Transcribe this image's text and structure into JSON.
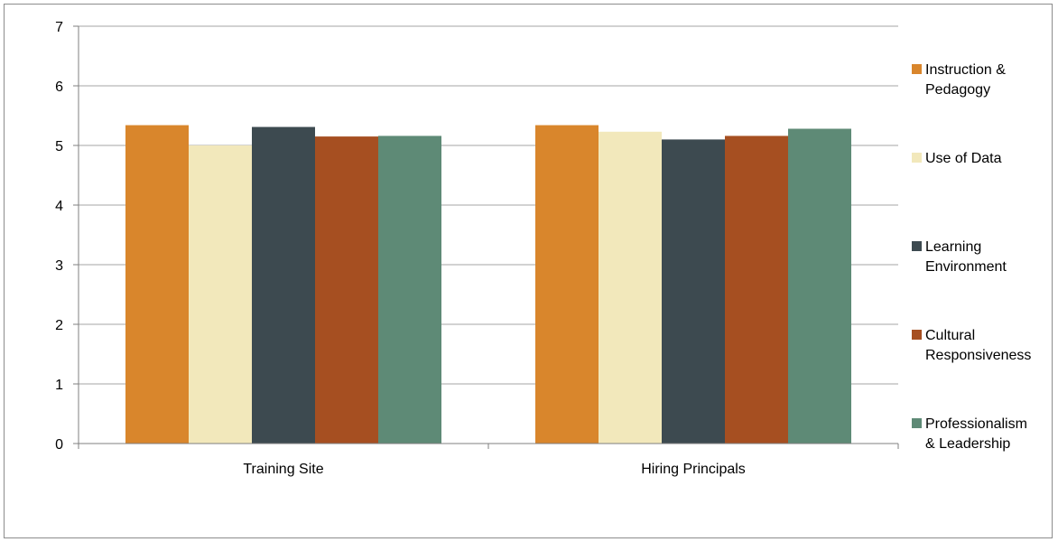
{
  "chart_data": {
    "type": "bar",
    "categories": [
      "Training Site",
      "Hiring Principals"
    ],
    "series": [
      {
        "name": "Instruction & Pedagogy",
        "label_lines": [
          "Instruction &",
          "Pedagogy"
        ],
        "color": "#d9862c",
        "values": [
          5.34,
          5.34
        ]
      },
      {
        "name": "Use of Data",
        "label_lines": [
          "Use of Data"
        ],
        "color": "#f2e8bb",
        "values": [
          5.0,
          5.23
        ]
      },
      {
        "name": "Learning Environment",
        "label_lines": [
          "Learning",
          "Environment"
        ],
        "color": "#3d4a50",
        "values": [
          5.31,
          5.1
        ]
      },
      {
        "name": "Cultural Responsiveness",
        "label_lines": [
          "Cultural",
          "Responsiveness"
        ],
        "color": "#a64f21",
        "values": [
          5.15,
          5.16
        ]
      },
      {
        "name": "Professionalism & Leadership",
        "label_lines": [
          "Professionalism",
          "& Leadership"
        ],
        "color": "#5e8a76",
        "values": [
          5.16,
          5.28
        ]
      }
    ],
    "yticks": [
      "0",
      "1",
      "2",
      "3",
      "4",
      "5",
      "6",
      "7"
    ],
    "ylim": [
      0,
      7
    ],
    "grid": true,
    "legend_position": "right",
    "title": "",
    "xlabel": "",
    "ylabel": ""
  }
}
